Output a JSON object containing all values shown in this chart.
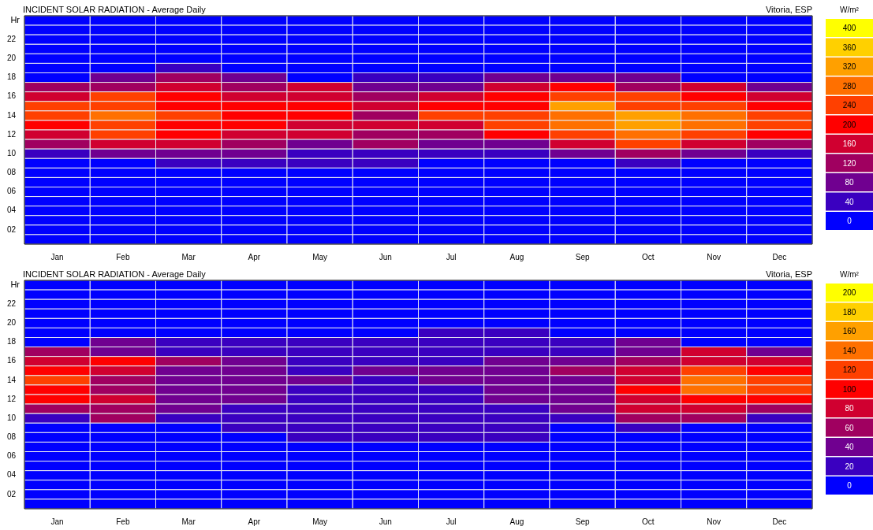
{
  "chart_data": [
    {
      "type": "heatmap",
      "title": "INCIDENT SOLAR RADIATION - Average Daily",
      "subtitle": "Vitoria, ESP",
      "ylabel": "Hr",
      "clabel": "W/m²",
      "categories": [
        "Jan",
        "Feb",
        "Mar",
        "Apr",
        "May",
        "Jun",
        "Jul",
        "Aug",
        "Sep",
        "Oct",
        "Nov",
        "Dec"
      ],
      "y_categories": [
        null,
        null,
        "22",
        null,
        "20",
        null,
        "18",
        null,
        "16",
        null,
        "14",
        null,
        "12",
        null,
        "10",
        null,
        "08",
        null,
        "06",
        null,
        "04",
        null,
        "02",
        null
      ],
      "cells": [
        [
          0,
          0,
          0,
          0,
          0,
          0,
          0,
          0,
          0,
          0,
          0,
          0
        ],
        [
          0,
          0,
          0,
          0,
          0,
          0,
          0,
          0,
          0,
          0,
          0,
          0
        ],
        [
          0,
          0,
          0,
          0,
          0,
          0,
          0,
          0,
          0,
          0,
          0,
          0
        ],
        [
          0,
          0,
          0,
          0,
          0,
          0,
          0,
          0,
          0,
          0,
          0,
          0
        ],
        [
          0,
          0,
          0,
          0,
          0,
          0,
          0,
          0,
          0,
          0,
          0,
          0
        ],
        [
          0,
          0,
          40,
          0,
          0,
          0,
          0,
          0,
          0,
          0,
          0,
          0
        ],
        [
          0,
          80,
          120,
          80,
          0,
          40,
          40,
          80,
          80,
          80,
          0,
          0
        ],
        [
          120,
          120,
          160,
          120,
          160,
          80,
          80,
          160,
          200,
          120,
          160,
          80
        ],
        [
          160,
          240,
          200,
          160,
          160,
          120,
          160,
          200,
          240,
          240,
          200,
          160
        ],
        [
          240,
          240,
          200,
          200,
          200,
          160,
          200,
          200,
          320,
          240,
          240,
          200
        ],
        [
          240,
          280,
          240,
          200,
          200,
          120,
          240,
          240,
          280,
          320,
          280,
          240
        ],
        [
          200,
          240,
          200,
          200,
          160,
          160,
          160,
          240,
          280,
          320,
          280,
          240
        ],
        [
          160,
          240,
          200,
          160,
          160,
          120,
          120,
          200,
          240,
          280,
          240,
          200
        ],
        [
          120,
          160,
          160,
          120,
          80,
          120,
          80,
          80,
          160,
          240,
          160,
          120
        ],
        [
          40,
          80,
          80,
          80,
          40,
          40,
          40,
          40,
          80,
          120,
          80,
          40
        ],
        [
          0,
          0,
          40,
          40,
          40,
          40,
          0,
          0,
          0,
          40,
          0,
          0
        ],
        [
          0,
          0,
          0,
          0,
          0,
          0,
          0,
          0,
          0,
          0,
          0,
          0
        ],
        [
          0,
          0,
          0,
          0,
          0,
          0,
          0,
          0,
          0,
          0,
          0,
          0
        ],
        [
          0,
          0,
          0,
          0,
          0,
          0,
          0,
          0,
          0,
          0,
          0,
          0
        ],
        [
          0,
          0,
          0,
          0,
          0,
          0,
          0,
          0,
          0,
          0,
          0,
          0
        ],
        [
          0,
          0,
          0,
          0,
          0,
          0,
          0,
          0,
          0,
          0,
          0,
          0
        ],
        [
          0,
          0,
          0,
          0,
          0,
          0,
          0,
          0,
          0,
          0,
          0,
          0
        ],
        [
          0,
          0,
          0,
          0,
          0,
          0,
          0,
          0,
          0,
          0,
          0,
          0
        ],
        [
          0,
          0,
          0,
          0,
          0,
          0,
          0,
          0,
          0,
          0,
          0,
          0
        ]
      ],
      "clim": [
        0,
        400
      ],
      "cticks": [
        0,
        40,
        80,
        120,
        160,
        200,
        240,
        280,
        320,
        360,
        400
      ]
    },
    {
      "type": "heatmap",
      "title": "INCIDENT SOLAR RADIATION - Average Daily",
      "subtitle": "Vitoria, ESP",
      "ylabel": "Hr",
      "clabel": "W/m²",
      "categories": [
        "Jan",
        "Feb",
        "Mar",
        "Apr",
        "May",
        "Jun",
        "Jul",
        "Aug",
        "Sep",
        "Oct",
        "Nov",
        "Dec"
      ],
      "y_categories": [
        null,
        null,
        "22",
        null,
        "20",
        null,
        "18",
        null,
        "16",
        null,
        "14",
        null,
        "12",
        null,
        "10",
        null,
        "08",
        null,
        "06",
        null,
        "04",
        null,
        "02",
        null
      ],
      "cells": [
        [
          0,
          0,
          0,
          0,
          0,
          0,
          0,
          0,
          0,
          0,
          0,
          0
        ],
        [
          0,
          0,
          0,
          0,
          0,
          0,
          0,
          0,
          0,
          0,
          0,
          0
        ],
        [
          0,
          0,
          0,
          0,
          0,
          0,
          0,
          0,
          0,
          0,
          0,
          0
        ],
        [
          0,
          0,
          0,
          0,
          0,
          0,
          0,
          0,
          0,
          0,
          0,
          0
        ],
        [
          0,
          0,
          0,
          0,
          0,
          0,
          0,
          0,
          0,
          0,
          0,
          0
        ],
        [
          0,
          0,
          0,
          0,
          0,
          0,
          20,
          20,
          0,
          0,
          0,
          0
        ],
        [
          0,
          40,
          20,
          20,
          20,
          20,
          20,
          20,
          20,
          40,
          0,
          0
        ],
        [
          60,
          40,
          20,
          20,
          20,
          20,
          20,
          20,
          20,
          40,
          80,
          40
        ],
        [
          80,
          100,
          60,
          40,
          20,
          20,
          20,
          40,
          40,
          60,
          80,
          80
        ],
        [
          100,
          80,
          40,
          40,
          20,
          40,
          40,
          40,
          60,
          80,
          120,
          100
        ],
        [
          120,
          60,
          40,
          40,
          40,
          20,
          40,
          40,
          40,
          80,
          140,
          120
        ],
        [
          100,
          60,
          40,
          40,
          20,
          20,
          20,
          40,
          40,
          100,
          140,
          120
        ],
        [
          100,
          80,
          40,
          40,
          20,
          20,
          20,
          40,
          40,
          80,
          100,
          100
        ],
        [
          60,
          60,
          40,
          20,
          20,
          20,
          20,
          20,
          40,
          80,
          80,
          60
        ],
        [
          20,
          60,
          20,
          20,
          20,
          20,
          20,
          20,
          20,
          60,
          60,
          20
        ],
        [
          0,
          0,
          0,
          20,
          20,
          20,
          20,
          20,
          0,
          20,
          0,
          0
        ],
        [
          0,
          0,
          0,
          0,
          20,
          20,
          20,
          20,
          0,
          0,
          0,
          0
        ],
        [
          0,
          0,
          0,
          0,
          0,
          0,
          0,
          0,
          0,
          0,
          0,
          0
        ],
        [
          0,
          0,
          0,
          0,
          0,
          0,
          0,
          0,
          0,
          0,
          0,
          0
        ],
        [
          0,
          0,
          0,
          0,
          0,
          0,
          0,
          0,
          0,
          0,
          0,
          0
        ],
        [
          0,
          0,
          0,
          0,
          0,
          0,
          0,
          0,
          0,
          0,
          0,
          0
        ],
        [
          0,
          0,
          0,
          0,
          0,
          0,
          0,
          0,
          0,
          0,
          0,
          0
        ],
        [
          0,
          0,
          0,
          0,
          0,
          0,
          0,
          0,
          0,
          0,
          0,
          0
        ],
        [
          0,
          0,
          0,
          0,
          0,
          0,
          0,
          0,
          0,
          0,
          0,
          0
        ]
      ],
      "clim": [
        0,
        200
      ],
      "cticks": [
        0,
        20,
        40,
        60,
        80,
        100,
        120,
        140,
        160,
        180,
        200
      ]
    }
  ]
}
